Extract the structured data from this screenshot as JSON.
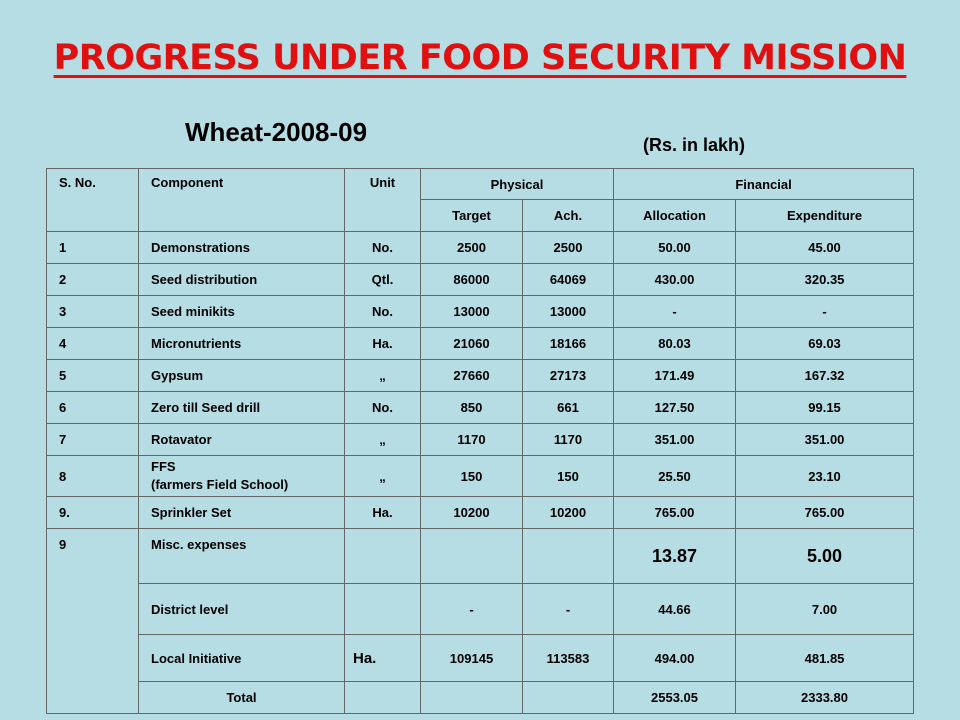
{
  "title": "PROGRESS UNDER FOOD SECURITY MISSION",
  "subtitle": "Wheat-2008-09",
  "units": "(Rs. in lakh)",
  "headers": {
    "sno": "S. No.",
    "component": "Component",
    "unit": "Unit",
    "physical": "Physical",
    "financial": "Financial",
    "target": "Target",
    "ach": "Ach.",
    "allocation": "Allocation",
    "expenditure": "Expenditure"
  },
  "rows": [
    {
      "sno": "1",
      "component": "Demonstrations",
      "unit": "No.",
      "target": "2500",
      "ach": "2500",
      "allocation": "50.00",
      "expenditure": "45.00"
    },
    {
      "sno": "2",
      "component": "Seed distribution",
      "unit": "Qtl.",
      "target": "86000",
      "ach": "64069",
      "allocation": "430.00",
      "expenditure": "320.35"
    },
    {
      "sno": "3",
      "component": "Seed minikits",
      "unit": "No.",
      "target": "13000",
      "ach": "13000",
      "allocation": "-",
      "expenditure": "-"
    },
    {
      "sno": "4",
      "component": "Micronutrients",
      "unit": "Ha.",
      "target": "21060",
      "ach": "18166",
      "allocation": "80.03",
      "expenditure": "69.03"
    },
    {
      "sno": "5",
      "component": "Gypsum",
      "unit": "„",
      "target": "27660",
      "ach": "27173",
      "allocation": "171.49",
      "expenditure": "167.32"
    },
    {
      "sno": "6",
      "component": "Zero till Seed drill",
      "unit": "No.",
      "target": "850",
      "ach": "661",
      "allocation": "127.50",
      "expenditure": "99.15"
    },
    {
      "sno": "7",
      "component": "Rotavator",
      "unit": "„",
      "target": "1170",
      "ach": "1170",
      "allocation": "351.00",
      "expenditure": "351.00"
    },
    {
      "sno": "8",
      "component": "FFS",
      "component_sub": "(farmers Field School)",
      "unit": "„",
      "target": "150",
      "ach": "150",
      "allocation": "25.50",
      "expenditure": "23.10"
    },
    {
      "sno": "9.",
      "component": "Sprinkler Set",
      "unit": "Ha.",
      "target": "10200",
      "ach": "10200",
      "allocation": "765.00",
      "expenditure": "765.00"
    }
  ],
  "misc": {
    "sno": "9",
    "component": "Misc. expenses",
    "allocation": "13.87",
    "expenditure": "5.00"
  },
  "district": {
    "component": "District level",
    "target": "-",
    "ach": "-",
    "allocation": "44.66",
    "expenditure": "7.00"
  },
  "local": {
    "component": "Local Initiative",
    "unit": "Ha.",
    "target": "109145",
    "ach": "113583",
    "allocation": "494.00",
    "expenditure": "481.85"
  },
  "total": {
    "component": "Total",
    "allocation": "2553.05",
    "expenditure": "2333.80"
  }
}
